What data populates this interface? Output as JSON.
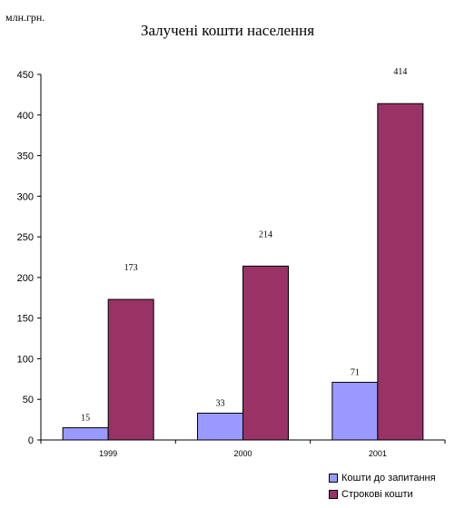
{
  "chart_data": {
    "type": "bar",
    "title": "Залучені кошти населення",
    "unit_label": "млн.грн.",
    "categories": [
      "1999",
      "2000",
      "2001"
    ],
    "series": [
      {
        "name": "Кошти до запитання",
        "values": [
          15,
          33,
          71
        ],
        "color": "#9999ff"
      },
      {
        "name": "Строкові кошти",
        "values": [
          173,
          214,
          414
        ],
        "color": "#993366"
      }
    ],
    "ylim": [
      0,
      450
    ],
    "yticks": [
      0,
      50,
      100,
      150,
      200,
      250,
      300,
      350,
      400,
      450
    ],
    "grid": false,
    "legend": "bottom-right"
  }
}
